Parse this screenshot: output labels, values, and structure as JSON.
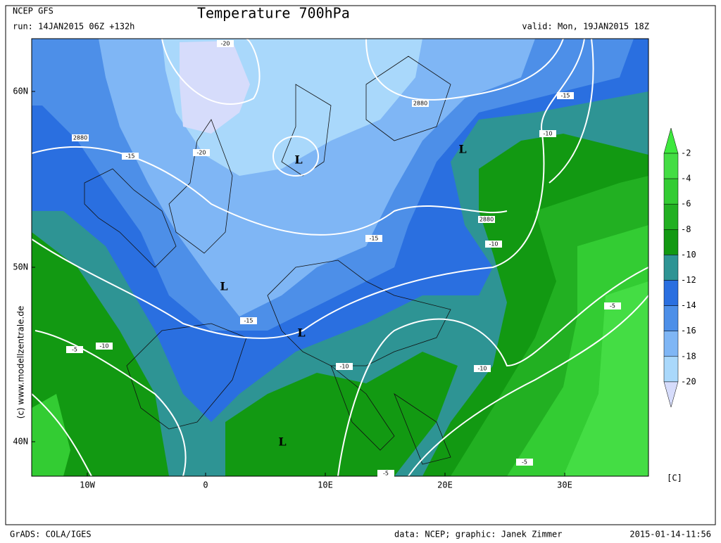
{
  "header": {
    "model": "NCEP GFS",
    "title": "Temperature 700hPa",
    "run": "run: 14JAN2015 06Z +132h",
    "valid": "valid: Mon, 19JAN2015 18Z"
  },
  "map": {
    "lat_labels": [
      "60N",
      "50N",
      "40N"
    ],
    "lon_labels": [
      "10W",
      "0",
      "10E",
      "20E",
      "30E"
    ],
    "lows": [
      "L",
      "L",
      "L",
      "L",
      "L"
    ],
    "contour_labels": [
      -20,
      -20,
      -15,
      2880,
      2880,
      -15,
      -10,
      2880,
      -10,
      -15,
      -15,
      -10,
      -5,
      -10,
      -10,
      -5,
      -5,
      -5
    ]
  },
  "colorbar": {
    "ticks": [
      -2,
      -4,
      -6,
      -8,
      -10,
      -12,
      -14,
      -16,
      -18,
      -20
    ],
    "unit": "[C]"
  },
  "watermark": "(c) www.modellzentrale.de",
  "footer": {
    "software": "GrADS: COLA/IGES",
    "credit": "data: NCEP; graphic: Janek Zimmer",
    "timestamp": "2015-01-14-11:56"
  }
}
